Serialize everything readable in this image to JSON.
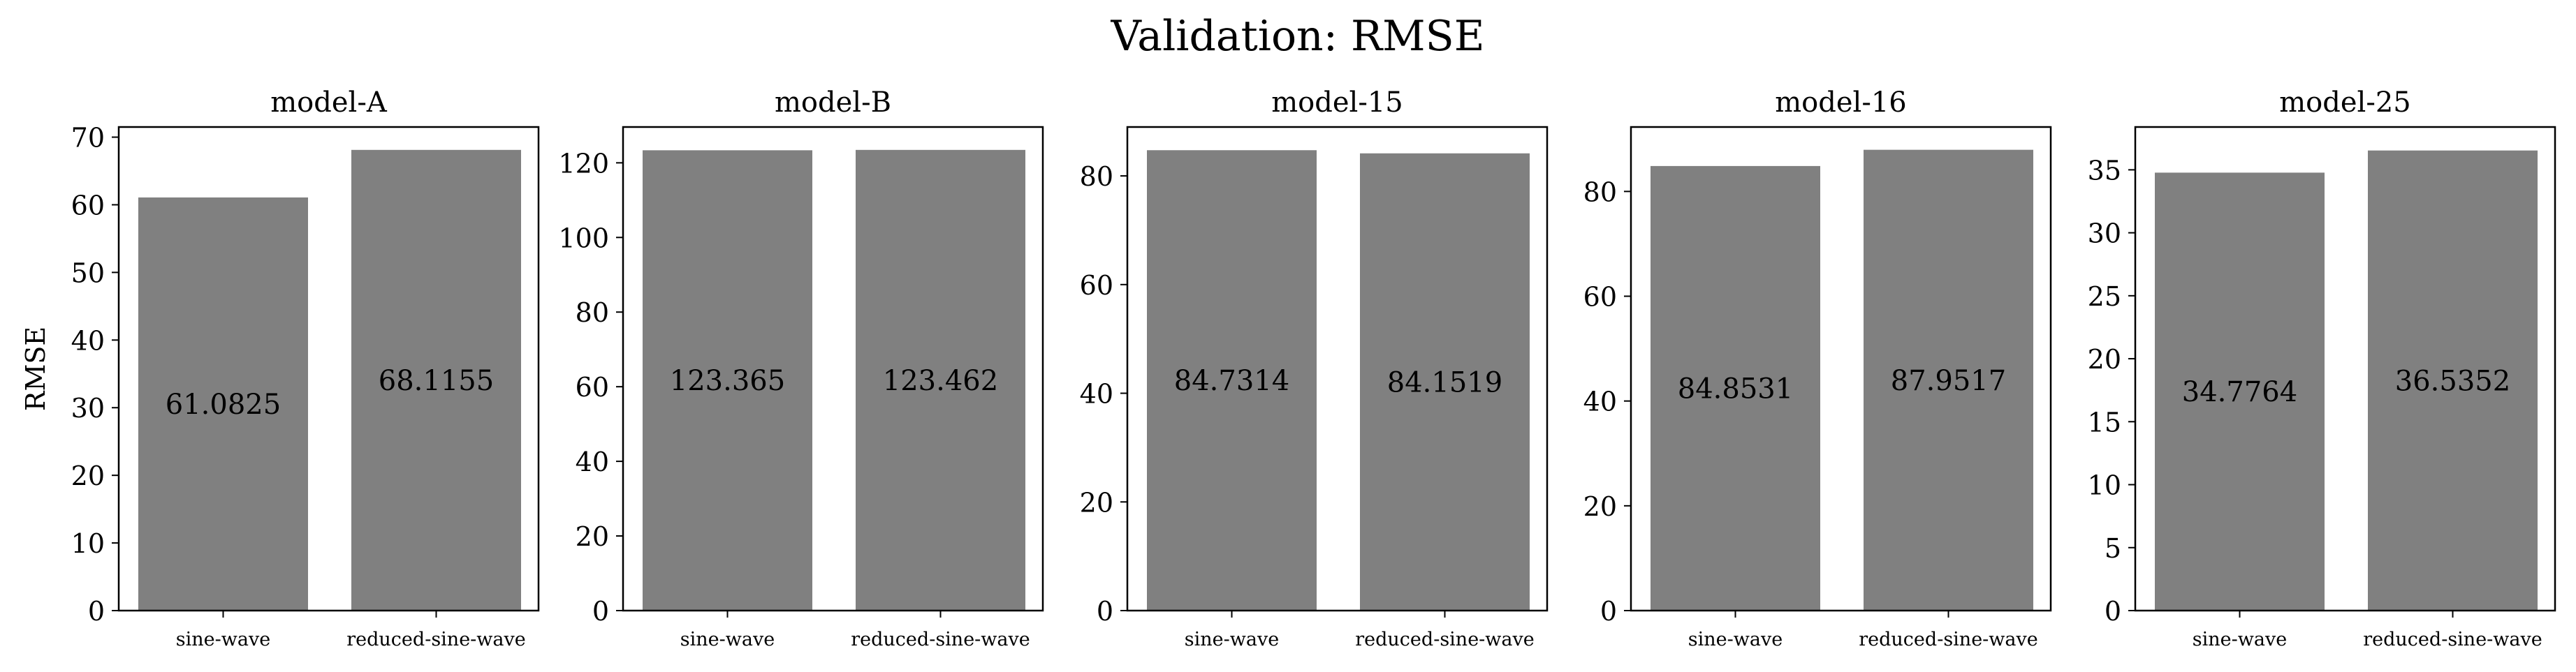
{
  "figure": {
    "title": "Validation: RMSE"
  },
  "colors": {
    "bar": "#808080",
    "axis": "#000000",
    "background": "#ffffff"
  },
  "chart_data": [
    {
      "type": "bar",
      "title": "model-A",
      "ylabel": "RMSE",
      "categories": [
        "sine-wave",
        "reduced-sine-wave"
      ],
      "values": [
        61.0825,
        68.1155
      ],
      "value_labels": [
        "61.0825",
        "68.1155"
      ],
      "ylim": [
        0,
        71.5
      ],
      "yticks": [
        0,
        10,
        20,
        30,
        40,
        50,
        60,
        70
      ],
      "grid": false
    },
    {
      "type": "bar",
      "title": "model-B",
      "ylabel": "",
      "categories": [
        "sine-wave",
        "reduced-sine-wave"
      ],
      "values": [
        123.365,
        123.462
      ],
      "value_labels": [
        "123.365",
        "123.462"
      ],
      "ylim": [
        0,
        129.6
      ],
      "yticks": [
        0,
        20,
        40,
        60,
        80,
        100,
        120
      ],
      "grid": false
    },
    {
      "type": "bar",
      "title": "model-15",
      "ylabel": "",
      "categories": [
        "sine-wave",
        "reduced-sine-wave"
      ],
      "values": [
        84.7314,
        84.1519
      ],
      "value_labels": [
        "84.7314",
        "84.1519"
      ],
      "ylim": [
        0,
        89
      ],
      "yticks": [
        0,
        20,
        40,
        60,
        80
      ],
      "grid": false
    },
    {
      "type": "bar",
      "title": "model-16",
      "ylabel": "",
      "categories": [
        "sine-wave",
        "reduced-sine-wave"
      ],
      "values": [
        84.8531,
        87.9517
      ],
      "value_labels": [
        "84.8531",
        "87.9517"
      ],
      "ylim": [
        0,
        92.3
      ],
      "yticks": [
        0,
        20,
        40,
        60,
        80
      ],
      "grid": false
    },
    {
      "type": "bar",
      "title": "model-25",
      "ylabel": "",
      "categories": [
        "sine-wave",
        "reduced-sine-wave"
      ],
      "values": [
        34.7764,
        36.5352
      ],
      "value_labels": [
        "34.7764",
        "36.5352"
      ],
      "ylim": [
        0,
        38.4
      ],
      "yticks": [
        0,
        5,
        10,
        15,
        20,
        25,
        30,
        35
      ],
      "grid": false
    }
  ]
}
